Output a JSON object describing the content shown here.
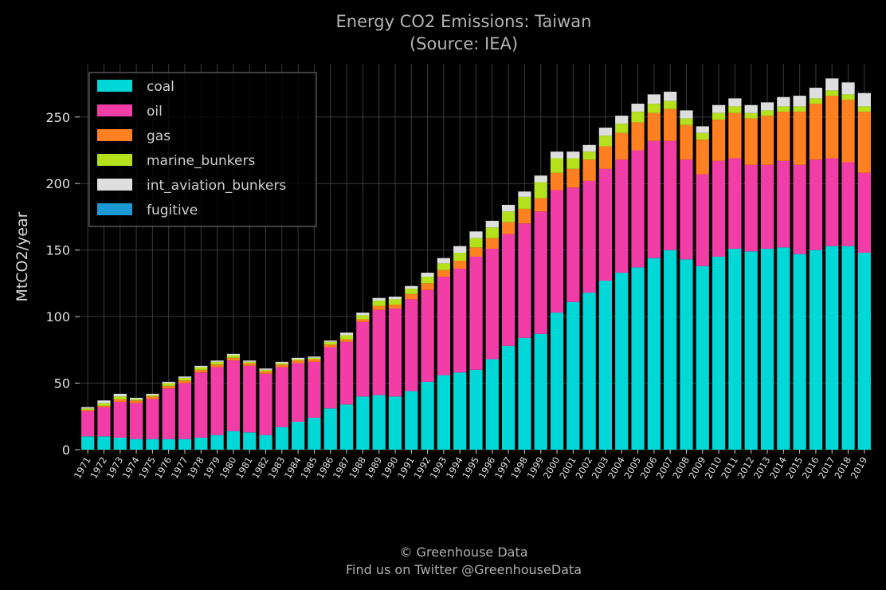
{
  "chart_data": {
    "type": "bar",
    "stacked": true,
    "title": "Energy CO2 Emissions: Taiwan",
    "subtitle": "(Source: IEA)",
    "ylabel": "MtCO2/year",
    "xlabel": "",
    "ylim": [
      0,
      290
    ],
    "yticks": [
      0,
      50,
      100,
      150,
      200,
      250
    ],
    "grid": true,
    "legend_position": "top-left",
    "categories": [
      "1971",
      "1972",
      "1973",
      "1974",
      "1975",
      "1976",
      "1977",
      "1978",
      "1979",
      "1980",
      "1981",
      "1982",
      "1983",
      "1984",
      "1985",
      "1986",
      "1987",
      "1988",
      "1989",
      "1990",
      "1991",
      "1992",
      "1993",
      "1994",
      "1995",
      "1996",
      "1997",
      "1998",
      "1999",
      "2000",
      "2001",
      "2002",
      "2003",
      "2004",
      "2005",
      "2006",
      "2007",
      "2008",
      "2009",
      "2010",
      "2011",
      "2012",
      "2013",
      "2014",
      "2015",
      "2016",
      "2017",
      "2018",
      "2019"
    ],
    "series": [
      {
        "name": "coal",
        "color": "#00d8d8",
        "values": [
          10,
          10,
          9,
          8,
          8,
          8,
          8,
          9,
          11,
          14,
          13,
          11,
          17,
          21,
          24,
          31,
          34,
          40,
          41,
          40,
          44,
          51,
          56,
          58,
          60,
          68,
          78,
          84,
          87,
          103,
          111,
          118,
          127,
          133,
          137,
          144,
          150,
          143,
          138,
          145,
          151,
          149,
          151,
          152,
          147,
          150,
          153,
          153,
          148
        ]
      },
      {
        "name": "oil",
        "color": "#f23ca6",
        "values": [
          19,
          22,
          27,
          27,
          30,
          38,
          42,
          49,
          51,
          53,
          50,
          46,
          45,
          44,
          42,
          46,
          47,
          56,
          64,
          66,
          69,
          69,
          74,
          78,
          85,
          83,
          84,
          86,
          92,
          92,
          86,
          84,
          84,
          85,
          88,
          88,
          82,
          75,
          69,
          72,
          68,
          65,
          63,
          65,
          67,
          68,
          66,
          63,
          60
        ]
      },
      {
        "name": "gas",
        "color": "#ff8021",
        "values": [
          1,
          1,
          2,
          2,
          2,
          2,
          2,
          2,
          2,
          2,
          2,
          2,
          2,
          2,
          2,
          2,
          2,
          2,
          3,
          3,
          4,
          5,
          5,
          6,
          7,
          8,
          9,
          11,
          10,
          13,
          14,
          16,
          17,
          20,
          21,
          21,
          24,
          26,
          26,
          31,
          34,
          35,
          37,
          37,
          40,
          42,
          47,
          47,
          46
        ]
      },
      {
        "name": "marine_bunkers",
        "color": "#b4e01c",
        "values": [
          1,
          2,
          2,
          1,
          1,
          2,
          2,
          2,
          2,
          2,
          1,
          1,
          1,
          1,
          1,
          2,
          3,
          3,
          4,
          4,
          4,
          5,
          5,
          6,
          7,
          8,
          8,
          9,
          12,
          11,
          8,
          6,
          8,
          7,
          8,
          7,
          6,
          5,
          5,
          5,
          5,
          4,
          4,
          4,
          4,
          4,
          4,
          4,
          4
        ]
      },
      {
        "name": "int_aviation_bunkers",
        "color": "#dedede",
        "values": [
          1,
          2,
          2,
          1,
          1,
          1,
          1,
          1,
          1,
          1,
          1,
          1,
          1,
          1,
          1,
          1,
          2,
          2,
          2,
          2,
          2,
          3,
          4,
          5,
          5,
          5,
          5,
          4,
          5,
          5,
          5,
          5,
          6,
          6,
          6,
          7,
          7,
          6,
          5,
          6,
          6,
          6,
          6,
          7,
          8,
          8,
          9,
          9,
          10
        ]
      },
      {
        "name": "fugitive",
        "color": "#1b9ad6",
        "values": [
          0,
          0,
          0,
          0,
          0,
          0,
          0,
          0,
          0,
          0,
          0,
          0,
          0,
          0,
          0,
          0,
          0,
          0,
          0,
          0,
          0,
          0,
          0,
          0,
          0,
          0,
          0,
          0,
          0,
          0,
          0,
          0,
          0,
          0,
          0,
          0,
          0,
          0,
          0,
          0,
          0,
          0,
          0,
          0,
          0,
          0,
          0,
          0,
          0
        ]
      }
    ]
  },
  "footer": {
    "copyright": "© Greenhouse Data",
    "twitter": "Find us on Twitter @GreenhouseData"
  }
}
